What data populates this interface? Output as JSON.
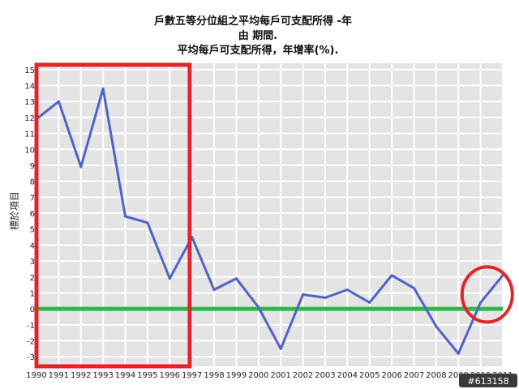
{
  "chart_data": {
    "type": "line",
    "title_lines": [
      "戶數五等分位組之平均每戶可支配所得 -年",
      "由 期間.",
      "平均每戶可支配所得，年增率(%)."
    ],
    "ylabel": "標於項目",
    "x": [
      1990,
      1991,
      1992,
      1993,
      1994,
      1995,
      1996,
      1997,
      1998,
      1999,
      2000,
      2001,
      2002,
      2003,
      2004,
      2005,
      2006,
      2007,
      2008,
      2009,
      2010,
      2011
    ],
    "x_labels": [
      "1990",
      "1991",
      "1992",
      "1993",
      "1994",
      "1995",
      "1996",
      "1997",
      "1998",
      "1999",
      "2000",
      "2001",
      "2002",
      "2003",
      "2004",
      "2005",
      "2006",
      "2007",
      "2008",
      "2009",
      "2010",
      "2011"
    ],
    "series": [
      {
        "values": [
          11.9,
          13.0,
          8.9,
          13.8,
          5.8,
          5.4,
          1.9,
          4.5,
          1.2,
          1.9,
          0.1,
          -2.5,
          0.9,
          0.7,
          1.2,
          0.4,
          2.1,
          1.3,
          -1.1,
          -2.8,
          0.4,
          2.1
        ]
      }
    ],
    "reference_line": {
      "y": 0
    },
    "y_ticks": [
      15,
      14,
      13,
      12,
      11,
      10,
      9,
      8,
      7,
      6,
      5,
      4,
      3,
      2,
      1,
      0,
      -1,
      -2,
      -3
    ],
    "ylim": [
      -3.6,
      15.4
    ],
    "xlim": [
      1990,
      2011
    ],
    "grid": true,
    "annotations": [
      {
        "shape": "rectangle",
        "from_x": 1990,
        "to_x": 1996.9,
        "from_y": 15.3,
        "to_y": -3.6
      },
      {
        "shape": "ellipse",
        "around_x": 2010.3,
        "around_y": 0.9
      }
    ],
    "watermark_text": "#613158",
    "colors": {
      "series": "#4f63c9",
      "reference_line": "#2eb84a",
      "annotation": "#e0262b",
      "grid": "#ffffff",
      "plot_bg": "#e4e4e4"
    }
  }
}
